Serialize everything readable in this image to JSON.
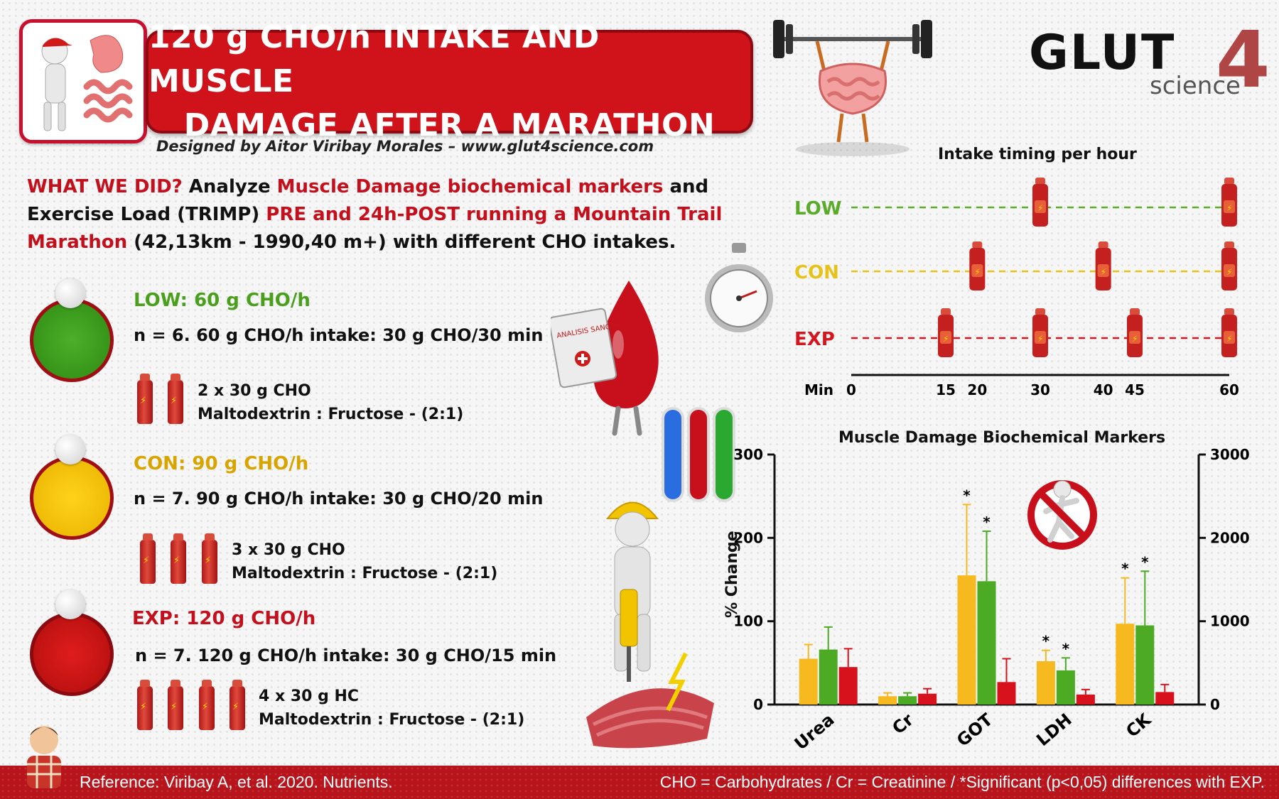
{
  "header": {
    "title_line1": "120 g CHO/h INTAKE AND MUSCLE",
    "title_line2": "DAMAGE AFTER A MARATHON",
    "designer": "Designed by Aitor Viribay Morales – www.glut4science.com"
  },
  "logo": {
    "main": "GLUT",
    "number": "4",
    "sub": "science"
  },
  "what_we_did": {
    "lead": "WHAT WE DID?",
    "t1": " Analyze ",
    "r1": "Muscle Damage biochemical markers",
    "t2": " and Exercise Load (TRIMP) ",
    "r2": "PRE and 24h-POST running a Mountain Trail Marathon",
    "t3": " (42,13km - 1990,40 m+) with different CHO intakes."
  },
  "groups": [
    {
      "title": "LOW: 60 g CHO/h",
      "line": "n = 6. 60 g CHO/h intake: 30 g CHO/30 min",
      "gel1": "2 x 30 g CHO",
      "gel2": "Maltodextrin : Fructose - (2:1)",
      "color": "#4a9f1c"
    },
    {
      "title": "CON: 90 g CHO/h",
      "line": "n = 7. 90 g CHO/h intake: 30 g CHO/20 min",
      "gel1": "3 x 30 g CHO",
      "gel2": "Maltodextrin : Fructose - (2:1)",
      "color": "#d8a400"
    },
    {
      "title": "EXP: 120 g CHO/h",
      "line": "n = 7. 120 g CHO/h intake: 30 g CHO/15 min",
      "gel1": "4 x 30 g HC",
      "gel2": "Maltodextrin : Fructose - (2:1)",
      "color": "#c4101c"
    }
  ],
  "illustration_text": {
    "clipboard": "ANALISIS SANGRE"
  },
  "footer": {
    "reference": "Reference: Viribay A, et al. 2020. Nutrients.",
    "abbreviations": "CHO = Carbohydrates / Cr = Creatinine / *Significant (p<0,05) differences with EXP."
  },
  "chart_data": [
    {
      "type": "scatter",
      "title": "Intake timing per hour",
      "xlabel": "Min",
      "x_ticks": [
        0,
        15,
        20,
        30,
        40,
        45,
        60
      ],
      "xlim": [
        0,
        60
      ],
      "series": [
        {
          "name": "LOW",
          "color": "#5aab2a",
          "x": [
            30,
            60
          ]
        },
        {
          "name": "CON",
          "color": "#e6c31a",
          "x": [
            20,
            40,
            60
          ]
        },
        {
          "name": "EXP",
          "color": "#d4161e",
          "x": [
            15,
            30,
            45,
            60
          ]
        }
      ]
    },
    {
      "type": "bar",
      "title": "Muscle Damage Biochemical Markers",
      "ylabel": "% Change",
      "categories": [
        "Urea",
        "Cr",
        "GOT",
        "LDH",
        "CK"
      ],
      "ylim": [
        0,
        300
      ],
      "yticks": [
        0,
        100,
        200,
        300
      ],
      "y2lim": [
        0,
        3000
      ],
      "y2ticks": [
        0,
        1000,
        2000,
        3000
      ],
      "series_colors": [
        "#f6b920",
        "#4caa24",
        "#d8121c"
      ],
      "series": [
        {
          "color": "#f6b920",
          "values": [
            55,
            10,
            155,
            52,
            97
          ],
          "errors": [
            17,
            4,
            85,
            13,
            55
          ],
          "significant": [
            false,
            false,
            true,
            true,
            true
          ]
        },
        {
          "color": "#4caa24",
          "values": [
            66,
            10,
            148,
            41,
            95
          ],
          "errors": [
            27,
            4,
            60,
            15,
            65
          ],
          "significant": [
            false,
            false,
            true,
            true,
            true
          ]
        },
        {
          "color": "#d8121c",
          "values": [
            45,
            13,
            27,
            12,
            15
          ],
          "errors": [
            22,
            6,
            28,
            6,
            9
          ],
          "significant": [
            false,
            false,
            false,
            false,
            false
          ]
        }
      ],
      "secondary_axis_categories": [
        "CK"
      ]
    }
  ]
}
